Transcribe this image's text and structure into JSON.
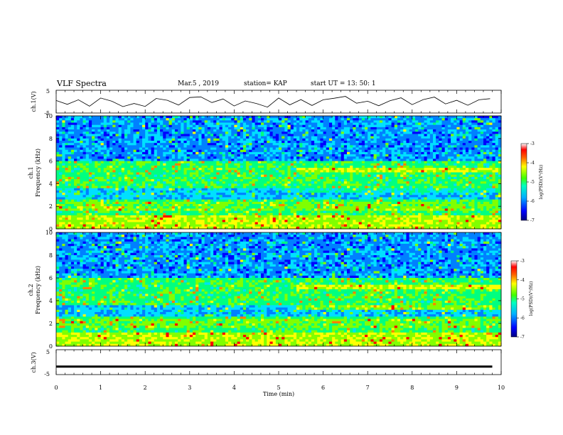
{
  "header": {
    "title": "VLF Spectra",
    "date": "Mar.5 , 2019",
    "station": "station= KAP",
    "start": "start UT = 13: 50: 1"
  },
  "chart_data": [
    {
      "type": "line",
      "panel": "ch1-waveform",
      "ylabel": "ch.1(V)",
      "ylim": [
        -5,
        5
      ],
      "yticks": [
        "5",
        "-5"
      ],
      "xlim": [
        0,
        10
      ],
      "x": [
        0,
        0.25,
        0.5,
        0.75,
        1,
        1.25,
        1.5,
        1.75,
        2,
        2.25,
        2.5,
        2.75,
        3,
        3.25,
        3.5,
        3.75,
        4,
        4.25,
        4.5,
        4.75,
        5,
        5.25,
        5.5,
        5.75,
        6,
        6.25,
        6.5,
        6.75,
        7,
        7.25,
        7.5,
        7.75,
        8,
        8.25,
        8.5,
        8.75,
        9,
        9.25,
        9.5,
        9.75
      ],
      "y": [
        0.5,
        -1.2,
        0.8,
        -2.0,
        1.6,
        0.2,
        -2.2,
        -0.8,
        -2.1,
        1.4,
        0.6,
        -1.5,
        1.8,
        2.1,
        -0.4,
        1.2,
        -1.9,
        0.3,
        -0.8,
        -2.4,
        1.6,
        -1.4,
        0.9,
        -1.7,
        0.8,
        1.5,
        2.3,
        -0.7,
        0.2,
        -1.8,
        0.4,
        1.7,
        -1.3,
        0.9,
        2.0,
        -1.0,
        0.6,
        -1.6,
        0.8,
        1.3
      ]
    },
    {
      "type": "heatmap",
      "panel": "ch1-spectrogram",
      "ylabel_line1": "ch.1",
      "ylabel_line2": "Frequency (kHz)",
      "ylim": [
        0,
        10
      ],
      "yticks": [
        "0",
        "2",
        "4",
        "6",
        "8",
        "10"
      ],
      "xlim": [
        0,
        10
      ],
      "colorbar": {
        "label": "log(PSD)(V²/Hz)",
        "range": [
          -7,
          -3
        ],
        "ticks": [
          "-3",
          "-4",
          "-5",
          "-6",
          "-7"
        ]
      }
    },
    {
      "type": "heatmap",
      "panel": "ch2-spectrogram",
      "ylabel_line1": "ch.2",
      "ylabel_line2": "Frequency (kHz)",
      "ylim": [
        0,
        10
      ],
      "yticks": [
        "0",
        "2",
        "4",
        "6",
        "8",
        "10"
      ],
      "xlim": [
        0,
        10
      ],
      "colorbar": {
        "label": "log(PSD)(V²/Hz)",
        "range": [
          -7,
          -3
        ],
        "ticks": [
          "-3",
          "-4",
          "-5",
          "-6",
          "-7"
        ]
      }
    },
    {
      "type": "line",
      "panel": "ch3-waveform",
      "ylabel": "ch.3(V)",
      "ylim": [
        -5,
        5
      ],
      "yticks": [
        "5",
        "-5"
      ],
      "xlim": [
        0,
        10
      ],
      "x": [
        0,
        9.8
      ],
      "y": [
        -1.8,
        -1.8
      ]
    }
  ],
  "xaxis": {
    "label": "Time (min)",
    "ticks": [
      "0",
      "1",
      "2",
      "3",
      "4",
      "5",
      "6",
      "7",
      "8",
      "9",
      "10"
    ]
  },
  "colors": {
    "colormap": [
      "#000080",
      "#0000ff",
      "#0080ff",
      "#00e0ff",
      "#00ff80",
      "#80ff00",
      "#ffff00",
      "#ff8000",
      "#ff0000",
      "#ffffff"
    ]
  }
}
